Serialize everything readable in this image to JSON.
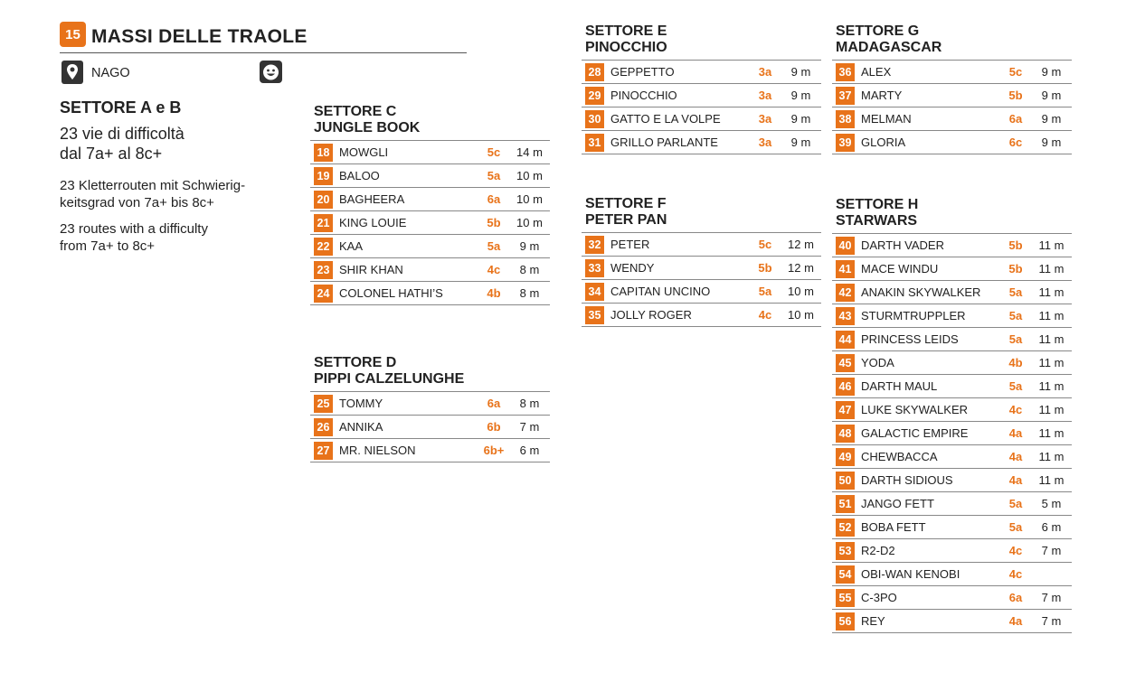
{
  "header": {
    "number": "15",
    "title": "MASSI DELLE TRAOLE",
    "location": "NAGO",
    "location_icon": "map-pin-icon",
    "family_icon": "smiley-icon"
  },
  "colors": {
    "accent": "#e8731a",
    "rule": "#888888",
    "text": "#222222"
  },
  "intro": {
    "title": "SETTORE A e B",
    "it": "23 vie di difficoltà\ndal 7a+ al 8c+",
    "de": "23 Kletterrouten mit Schwierig-\nkeitsgrad von 7a+ bis 8c+",
    "en": "23 routes with a difficulty\nfrom 7a+ to 8c+"
  },
  "sectors": {
    "c": {
      "title": "SETTORE C\nJUNGLE BOOK",
      "routes": [
        {
          "num": "18",
          "name": "MOWGLI",
          "grade": "5c",
          "length": "14 m"
        },
        {
          "num": "19",
          "name": "BALOO",
          "grade": "5a",
          "length": "10 m"
        },
        {
          "num": "20",
          "name": "BAGHEERA",
          "grade": "6a",
          "length": "10 m"
        },
        {
          "num": "21",
          "name": "KING LOUIE",
          "grade": "5b",
          "length": "10 m"
        },
        {
          "num": "22",
          "name": "KAA",
          "grade": "5a",
          "length": "9 m"
        },
        {
          "num": "23",
          "name": "SHIR KHAN",
          "grade": "4c",
          "length": "8 m"
        },
        {
          "num": "24",
          "name": "COLONEL HATHI’S",
          "grade": "4b",
          "length": "8 m"
        }
      ]
    },
    "d": {
      "title": "SETTORE D\nPIPPI CALZELUNGHE",
      "routes": [
        {
          "num": "25",
          "name": "TOMMY",
          "grade": "6a",
          "length": "8 m"
        },
        {
          "num": "26",
          "name": "ANNIKA",
          "grade": "6b",
          "length": "7 m"
        },
        {
          "num": "27",
          "name": "MR. NIELSON",
          "grade": "6b+",
          "length": "6 m"
        }
      ]
    },
    "e": {
      "title": "SETTORE E\nPINOCCHIO",
      "routes": [
        {
          "num": "28",
          "name": "GEPPETTO",
          "grade": "3a",
          "length": "9 m"
        },
        {
          "num": "29",
          "name": "PINOCCHIO",
          "grade": "3a",
          "length": "9 m"
        },
        {
          "num": "30",
          "name": "GATTO E LA VOLPE",
          "grade": "3a",
          "length": "9 m"
        },
        {
          "num": "31",
          "name": "GRILLO PARLANTE",
          "grade": "3a",
          "length": "9 m"
        }
      ]
    },
    "f": {
      "title": "SETTORE F\nPETER PAN",
      "routes": [
        {
          "num": "32",
          "name": "PETER",
          "grade": "5c",
          "length": "12 m"
        },
        {
          "num": "33",
          "name": "WENDY",
          "grade": "5b",
          "length": "12 m"
        },
        {
          "num": "34",
          "name": "CAPITAN UNCINO",
          "grade": "5a",
          "length": "10 m"
        },
        {
          "num": "35",
          "name": "JOLLY ROGER",
          "grade": "4c",
          "length": "10 m"
        }
      ]
    },
    "g": {
      "title": "SETTORE G\nMADAGASCAR",
      "routes": [
        {
          "num": "36",
          "name": "ALEX",
          "grade": "5c",
          "length": "9 m"
        },
        {
          "num": "37",
          "name": "MARTY",
          "grade": "5b",
          "length": "9 m"
        },
        {
          "num": "38",
          "name": "MELMAN",
          "grade": "6a",
          "length": "9 m"
        },
        {
          "num": "39",
          "name": "GLORIA",
          "grade": "6c",
          "length": "9 m"
        }
      ]
    },
    "h": {
      "title": "SETTORE H\nSTARWARS",
      "routes": [
        {
          "num": "40",
          "name": "DARTH VADER",
          "grade": "5b",
          "length": "11 m"
        },
        {
          "num": "41",
          "name": "MACE WINDU",
          "grade": "5b",
          "length": "11 m"
        },
        {
          "num": "42",
          "name": "ANAKIN SKYWALKER",
          "grade": "5a",
          "length": "11 m"
        },
        {
          "num": "43",
          "name": "STURMTRUPPLER",
          "grade": "5a",
          "length": "11 m"
        },
        {
          "num": "44",
          "name": "PRINCESS LEIDS",
          "grade": "5a",
          "length": "11 m"
        },
        {
          "num": "45",
          "name": "YODA",
          "grade": "4b",
          "length": "11 m"
        },
        {
          "num": "46",
          "name": "DARTH MAUL",
          "grade": "5a",
          "length": "11 m"
        },
        {
          "num": "47",
          "name": "LUKE SKYWALKER",
          "grade": "4c",
          "length": "11 m"
        },
        {
          "num": "48",
          "name": "GALACTIC EMPIRE",
          "grade": "4a",
          "length": "11 m"
        },
        {
          "num": "49",
          "name": "CHEWBACCA",
          "grade": "4a",
          "length": "11 m"
        },
        {
          "num": "50",
          "name": "DARTH SIDIOUS",
          "grade": "4a",
          "length": "11 m"
        },
        {
          "num": "51",
          "name": "JANGO FETT",
          "grade": "5a",
          "length": "5 m"
        },
        {
          "num": "52",
          "name": "BOBA FETT",
          "grade": "5a",
          "length": "6 m"
        },
        {
          "num": "53",
          "name": "R2-D2",
          "grade": "4c",
          "length": "7 m"
        },
        {
          "num": "54",
          "name": "OBI-WAN KENOBI",
          "grade": "4c",
          "length": ""
        },
        {
          "num": "55",
          "name": "C-3PO",
          "grade": "6a",
          "length": "7 m"
        },
        {
          "num": "56",
          "name": "REY",
          "grade": "4a",
          "length": "7 m"
        }
      ]
    }
  }
}
